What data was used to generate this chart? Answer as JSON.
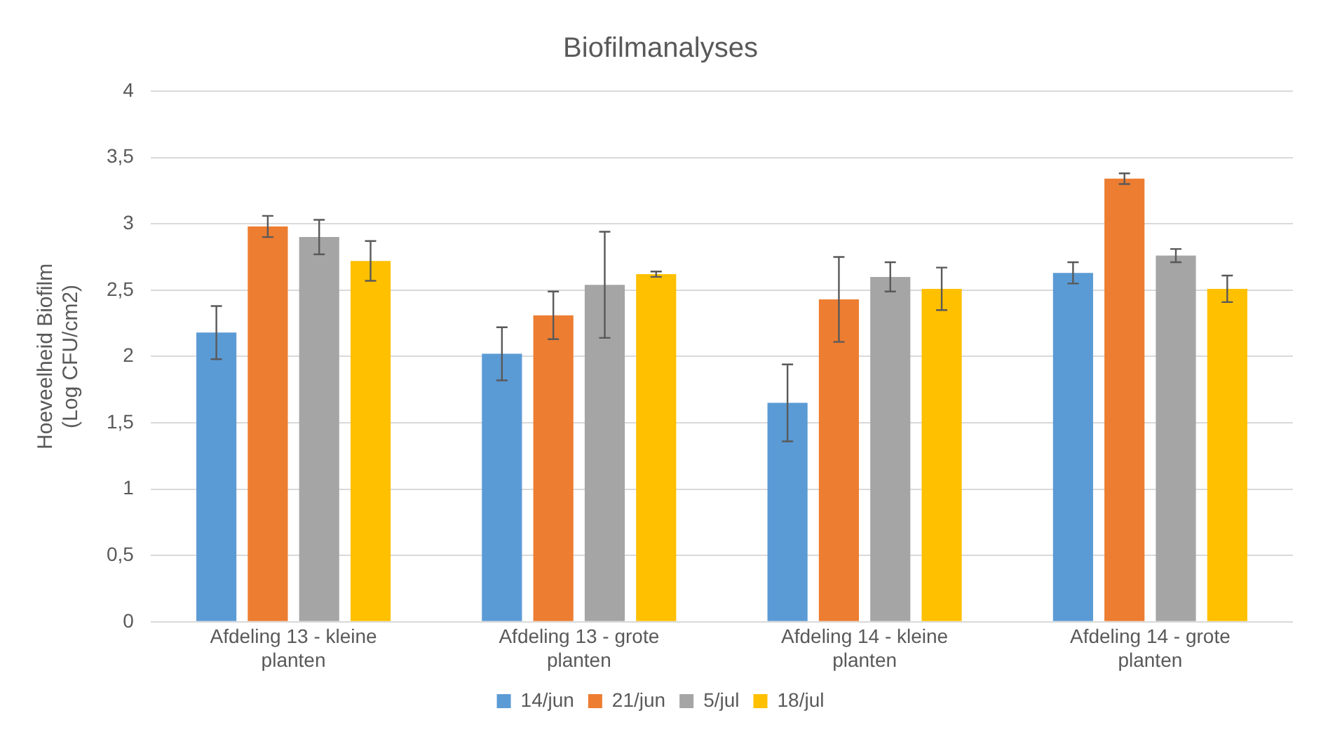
{
  "chart_data": {
    "type": "bar",
    "title": "Biofilmanalyses",
    "ylabel": "Hoeveelheid Biofilm (Log CFU/cm2)",
    "categories": [
      "Afdeling 13 - kleine planten",
      "Afdeling 13 - grote planten",
      "Afdeling 14 - kleine planten",
      "Afdeling 14 - grote planten"
    ],
    "series": [
      {
        "name": "14/jun",
        "color": "#5b9bd5",
        "values": [
          2.18,
          2.02,
          1.65,
          2.63
        ],
        "errors": [
          0.2,
          0.2,
          0.29,
          0.08
        ]
      },
      {
        "name": "21/jun",
        "color": "#ed7d31",
        "values": [
          2.98,
          2.31,
          2.43,
          3.34
        ],
        "errors": [
          0.08,
          0.18,
          0.32,
          0.04
        ]
      },
      {
        "name": "5/jul",
        "color": "#a5a5a5",
        "values": [
          2.9,
          2.54,
          2.6,
          2.76
        ],
        "errors": [
          0.13,
          0.4,
          0.11,
          0.05
        ]
      },
      {
        "name": "18/jul",
        "color": "#ffc000",
        "values": [
          2.72,
          2.62,
          2.51,
          2.51
        ],
        "errors": [
          0.15,
          0.02,
          0.16,
          0.1
        ]
      }
    ],
    "ylim": [
      0,
      4
    ],
    "yticks": [
      0,
      {
        "value": 0.5,
        "label": "0,5"
      },
      1,
      {
        "value": 1.5,
        "label": "1,5"
      },
      2,
      {
        "value": 2.5,
        "label": "2,5"
      },
      3,
      {
        "value": 3.5,
        "label": "3,5"
      },
      4
    ],
    "grid": "y",
    "legend": "bottom"
  }
}
